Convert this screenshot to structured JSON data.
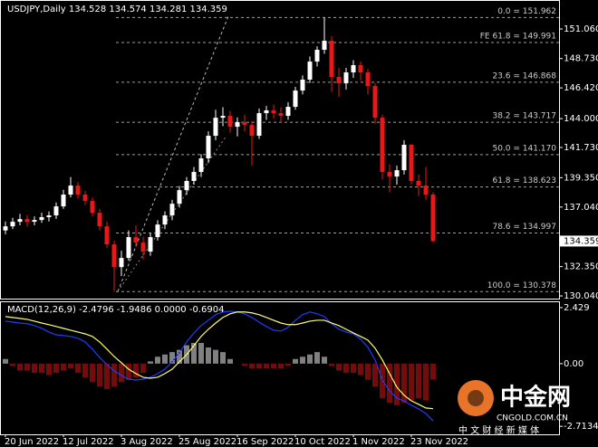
{
  "chart_data": [
    {
      "type": "candlestick",
      "title": "USDJPY,Daily  134.528 134.574 134.281 134.359",
      "up_color": "#ffffff",
      "down_color": "#e81818",
      "ylim": [
        129.83,
        153.34
      ],
      "yticks": [
        {
          "value": 151.06,
          "label": "151.060"
        },
        {
          "value": 148.73,
          "label": "148.730"
        },
        {
          "value": 146.42,
          "label": "146.420"
        },
        {
          "value": 144,
          "label": "144.000"
        },
        {
          "value": 141.73,
          "label": "141.730"
        },
        {
          "value": 139.35,
          "label": "139.350"
        },
        {
          "value": 137.04,
          "label": "137.040"
        },
        {
          "value": 132.35,
          "label": "132.350"
        },
        {
          "value": 130.04,
          "label": "130.040"
        }
      ],
      "current_price": 134.359,
      "fib_color": "#a0a0a0",
      "fib_levels": [
        {
          "label": "0.0 = 151.962",
          "value": 151.962
        },
        {
          "label": "FE 61.8 = 149.991",
          "value": 149.991
        },
        {
          "label": "23.6 = 146.868",
          "value": 146.868
        },
        {
          "label": "38.2 = 143.717",
          "value": 143.717
        },
        {
          "label": "50.0 = 141.170",
          "value": 141.17
        },
        {
          "label": "61.8 = 138.623",
          "value": 138.623
        },
        {
          "label": "78.6 = 134.997",
          "value": 134.997
        },
        {
          "label": "100.0 = 130.378",
          "value": 130.378
        }
      ],
      "categories": [
        "20 Jun 2022",
        null,
        null,
        null,
        null,
        null,
        null,
        null,
        "12 Jul 2022",
        null,
        null,
        null,
        null,
        null,
        null,
        null,
        "3 Aug 2022",
        null,
        null,
        null,
        null,
        null,
        null,
        null,
        "25 Aug 2022",
        null,
        null,
        null,
        null,
        null,
        null,
        null,
        "16 Sep 2022",
        null,
        null,
        null,
        null,
        null,
        null,
        null,
        "10 Oct 2022",
        null,
        null,
        null,
        null,
        null,
        null,
        null,
        "1 Nov 2022",
        null,
        null,
        null,
        null,
        null,
        null,
        null,
        "23 Nov 2022",
        null,
        null,
        null
      ],
      "candles": [
        [
          135.2,
          135.9,
          134.9,
          135.52
        ],
        [
          135.52,
          136.2,
          135.3,
          135.88
        ],
        [
          135.88,
          136.5,
          135.6,
          136.09
        ],
        [
          136.09,
          136.4,
          135.5,
          135.88
        ],
        [
          135.88,
          136.3,
          135.6,
          136.02
        ],
        [
          136.02,
          136.6,
          135.8,
          136.24
        ],
        [
          136.24,
          136.7,
          135.9,
          136.38
        ],
        [
          136.38,
          137.4,
          136.1,
          137.09
        ],
        [
          137.09,
          138.4,
          136.9,
          138.02
        ],
        [
          138.02,
          139.4,
          137.8,
          138.73
        ],
        [
          138.73,
          139.0,
          137.7,
          138.02
        ],
        [
          138.02,
          138.3,
          137.2,
          137.52
        ],
        [
          137.52,
          137.8,
          136.3,
          136.59
        ],
        [
          136.59,
          136.9,
          135.2,
          135.52
        ],
        [
          135.52,
          135.9,
          133.8,
          134.1
        ],
        [
          134.1,
          134.4,
          130.38,
          132.31
        ],
        [
          132.31,
          133.6,
          131.6,
          133.03
        ],
        [
          133.03,
          135.2,
          132.8,
          134.67
        ],
        [
          134.67,
          135.6,
          133.9,
          134.24
        ],
        [
          134.24,
          134.7,
          132.9,
          133.53
        ],
        [
          133.53,
          135.0,
          133.2,
          134.67
        ],
        [
          134.67,
          136.0,
          134.4,
          135.66
        ],
        [
          135.66,
          136.7,
          135.3,
          136.38
        ],
        [
          136.38,
          137.6,
          136.0,
          137.3
        ],
        [
          137.3,
          138.7,
          137.0,
          138.37
        ],
        [
          138.37,
          139.4,
          138.0,
          139.09
        ],
        [
          139.09,
          140.2,
          138.8,
          139.8
        ],
        [
          139.8,
          141.2,
          139.4,
          140.87
        ],
        [
          140.87,
          143.0,
          140.5,
          142.65
        ],
        [
          142.65,
          144.7,
          142.3,
          144.07
        ],
        [
          144.07,
          144.9,
          143.4,
          144.22
        ],
        [
          144.22,
          144.6,
          142.9,
          143.36
        ],
        [
          143.36,
          144.1,
          142.6,
          143.72
        ],
        [
          143.72,
          144.3,
          143.0,
          143.5
        ],
        [
          143.5,
          143.8,
          140.3,
          142.65
        ],
        [
          142.65,
          144.8,
          142.4,
          144.43
        ],
        [
          144.43,
          145.0,
          143.9,
          144.65
        ],
        [
          144.65,
          145.1,
          144.0,
          144.43
        ],
        [
          144.43,
          144.9,
          143.7,
          144.22
        ],
        [
          144.22,
          145.3,
          143.9,
          144.93
        ],
        [
          144.93,
          146.5,
          144.7,
          146.21
        ],
        [
          146.21,
          147.4,
          145.9,
          147.07
        ],
        [
          147.07,
          148.9,
          146.8,
          148.49
        ],
        [
          148.49,
          149.7,
          148.1,
          149.42
        ],
        [
          149.42,
          151.96,
          149.1,
          150.13
        ],
        [
          150.13,
          150.5,
          146.1,
          147.28
        ],
        [
          147.28,
          148.0,
          145.7,
          146.78
        ],
        [
          146.78,
          148.0,
          146.3,
          147.64
        ],
        [
          147.64,
          148.6,
          147.2,
          148.21
        ],
        [
          148.21,
          148.5,
          147.0,
          147.64
        ],
        [
          147.64,
          147.9,
          145.9,
          146.57
        ],
        [
          146.57,
          146.8,
          143.6,
          144.07
        ],
        [
          144.07,
          144.3,
          139.2,
          139.8
        ],
        [
          139.8,
          140.4,
          138.2,
          139.44
        ],
        [
          139.44,
          140.3,
          138.8,
          139.94
        ],
        [
          139.94,
          142.3,
          139.6,
          141.94
        ],
        [
          141.94,
          142.0,
          138.8,
          139.09
        ],
        [
          139.09,
          139.6,
          137.9,
          138.73
        ],
        [
          138.73,
          140.2,
          137.6,
          138.02
        ],
        [
          138.02,
          138.2,
          134.281,
          134.359
        ]
      ]
    },
    {
      "type": "macd",
      "title": "MACD(12,26,9) -2.4796 -1.9486 0.0000 -0.6904",
      "ylim": [
        -3.06,
        2.7
      ],
      "yticks": [
        2.429,
        {
          "value": 0,
          "label": "0.00"
        },
        -2.7134
      ],
      "histogram": {
        "up_color": "#ffffff",
        "down_color": "#e81818",
        "values": [
          0.2,
          -0.1,
          -0.3,
          -0.3,
          -0.4,
          -0.4,
          -0.5,
          -0.4,
          -0.3,
          -0.2,
          -0.4,
          -0.6,
          -0.8,
          -1.0,
          -1.1,
          -1.0,
          -0.8,
          -0.7,
          -0.6,
          -0.4,
          0.1,
          0.3,
          0.4,
          0.5,
          0.6,
          0.8,
          0.9,
          0.9,
          0.7,
          0.6,
          0.5,
          0.2,
          0.0,
          -0.1,
          -0.2,
          -0.2,
          -0.2,
          -0.2,
          -0.2,
          -0.1,
          0.2,
          0.3,
          0.4,
          0.5,
          0.3,
          -0.1,
          -0.3,
          -0.4,
          -0.4,
          -0.5,
          -0.7,
          -1.0,
          -1.5,
          -1.7,
          -1.8,
          -1.7,
          -1.6,
          -1.5,
          -1.6,
          -0.69
        ]
      },
      "series": [
        {
          "color": "#1f3cff",
          "values": [
            1.84,
            1.8,
            1.76,
            1.73,
            1.65,
            1.53,
            1.37,
            1.25,
            1.22,
            1.18,
            1.1,
            0.94,
            0.63,
            0.27,
            -0.04,
            -0.31,
            -0.51,
            -0.67,
            -0.71,
            -0.67,
            -0.59,
            -0.43,
            -0.24,
            0.08,
            0.47,
            0.94,
            1.33,
            1.65,
            1.88,
            2.12,
            2.24,
            2.27,
            2.24,
            2.16,
            2.0,
            1.8,
            1.61,
            1.45,
            1.41,
            1.57,
            1.88,
            2.12,
            2.24,
            2.16,
            2.04,
            1.73,
            1.49,
            1.37,
            1.29,
            1.06,
            0.71,
            0.16,
            -0.71,
            -1.18,
            -1.49,
            -1.61,
            -1.8,
            -1.96,
            -2.16,
            -2.48
          ]
        },
        {
          "color": "#ffff70",
          "values": [
            2.04,
            2.0,
            1.96,
            1.92,
            1.84,
            1.76,
            1.69,
            1.61,
            1.53,
            1.45,
            1.37,
            1.29,
            1.18,
            0.94,
            0.63,
            0.31,
            0.04,
            -0.24,
            -0.43,
            -0.59,
            -0.63,
            -0.59,
            -0.43,
            -0.24,
            0.08,
            0.39,
            0.78,
            1.18,
            1.49,
            1.76,
            2.0,
            2.16,
            2.24,
            2.24,
            2.2,
            2.12,
            2.0,
            1.88,
            1.76,
            1.69,
            1.69,
            1.76,
            1.84,
            1.88,
            1.88,
            1.76,
            1.65,
            1.49,
            1.33,
            1.18,
            1.02,
            0.67,
            0.16,
            -0.43,
            -1.02,
            -1.37,
            -1.61,
            -1.76,
            -1.92,
            -1.95
          ]
        }
      ]
    }
  ],
  "watermark": {
    "brand": "中金网",
    "site": "CNGOLD.COM.CN",
    "slogan": "中 文 财 经 新 媒 体"
  }
}
